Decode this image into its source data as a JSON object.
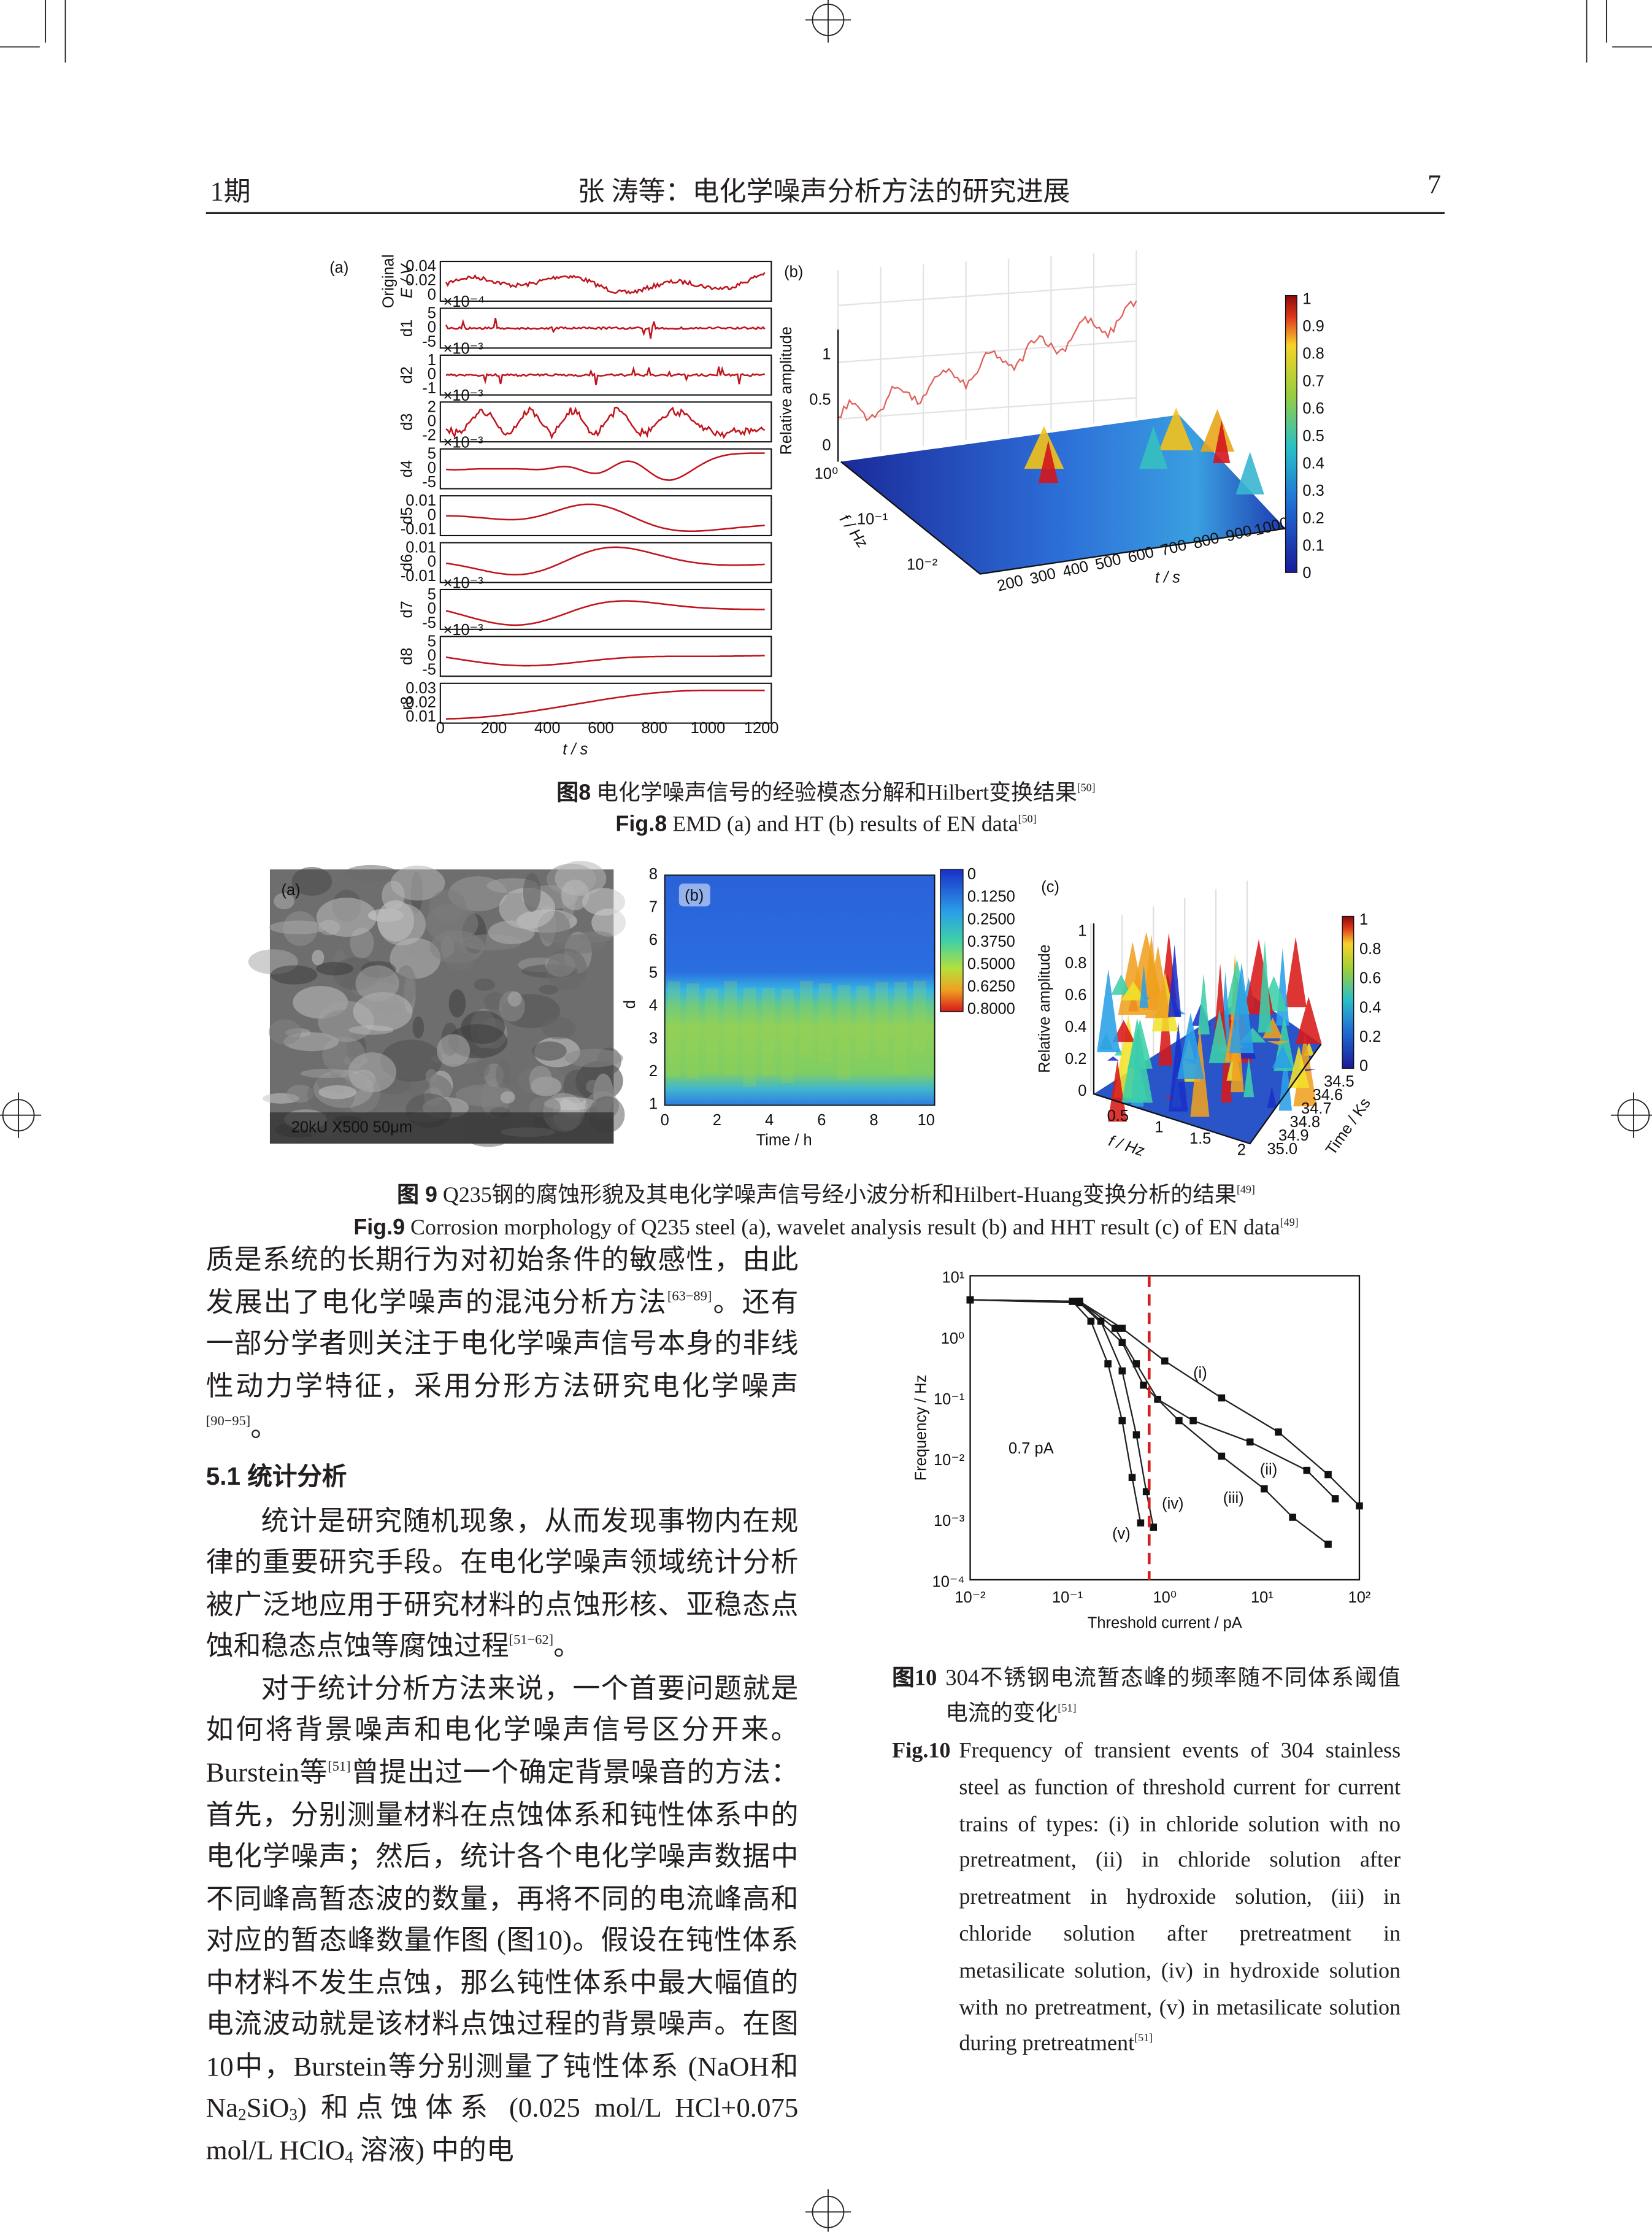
{
  "header": {
    "issue": "1期",
    "running_title": "张 涛等：电化学噪声分析方法的研究进展",
    "page": "7"
  },
  "figure8": {
    "panel_a": {
      "label": "(a)",
      "rows": [
        {
          "name": [
            "Original",
            "E / V"
          ],
          "ticks": [
            "0.04",
            "0.02",
            "0"
          ]
        },
        {
          "name": [
            "d1"
          ],
          "scale": "×10⁻⁴",
          "ticks": [
            "5",
            "0",
            "-5"
          ]
        },
        {
          "name": [
            "d2"
          ],
          "scale": "×10⁻³",
          "ticks": [
            "1",
            "0",
            "-1"
          ]
        },
        {
          "name": [
            "d3"
          ],
          "scale": "×10⁻³",
          "ticks": [
            "2",
            "0",
            "-2"
          ]
        },
        {
          "name": [
            "d4"
          ],
          "scale": "×10⁻³",
          "ticks": [
            "5",
            "0",
            "-5"
          ]
        },
        {
          "name": [
            "d5"
          ],
          "ticks": [
            "0.01",
            "0",
            "-0.01"
          ]
        },
        {
          "name": [
            "d6"
          ],
          "ticks": [
            "0.01",
            "0",
            "-0.01"
          ]
        },
        {
          "name": [
            "d7"
          ],
          "scale": "×10⁻³",
          "ticks": [
            "5",
            "0",
            "-5"
          ]
        },
        {
          "name": [
            "d8"
          ],
          "scale": "×10⁻³",
          "ticks": [
            "5",
            "0",
            "-5"
          ]
        },
        {
          "name": [
            "r8"
          ],
          "ticks": [
            "0.03",
            "0.02",
            "0.01"
          ]
        }
      ],
      "xticks": [
        "0",
        "200",
        "400",
        "600",
        "800",
        "1000",
        "1200"
      ],
      "xlabel": "t / s"
    },
    "panel_b": {
      "label": "(b)",
      "zlabel": "Relative amplitude",
      "zticks": [
        "1",
        "0.5",
        "0"
      ],
      "fticks": [
        "10⁰",
        "10⁻¹",
        "10⁻²"
      ],
      "flabel": "f / Hz",
      "tticks": [
        "200",
        "300",
        "400",
        "500",
        "600",
        "700",
        "800",
        "900",
        "1000"
      ],
      "tlabel": "t / s",
      "colorbar": [
        "1",
        "0.9",
        "0.8",
        "0.7",
        "0.6",
        "0.5",
        "0.4",
        "0.3",
        "0.2",
        "0.1",
        "0"
      ]
    },
    "caption_cn": {
      "label": "图8",
      "text": " 电化学噪声信号的经验模态分解和Hilbert变换结果",
      "ref": "[50]"
    },
    "caption_en": {
      "label": "Fig.8",
      "text": " EMD (a) and HT (b) results of EN data",
      "ref": "[50]"
    }
  },
  "figure9": {
    "panel_a": {
      "label": "(a)",
      "scale_text": "20kU   X500   50μm"
    },
    "panel_b": {
      "label": "(b)",
      "yticks": [
        "8",
        "7",
        "6",
        "5",
        "4",
        "3",
        "2",
        "1"
      ],
      "ylabel": "d",
      "xticks": [
        "0",
        "2",
        "4",
        "6",
        "8",
        "10"
      ],
      "xlabel": "Time / h",
      "colorbar": [
        "0",
        "0.1250",
        "0.2500",
        "0.3750",
        "0.5000",
        "0.6250",
        "0.8000"
      ]
    },
    "panel_c": {
      "label": "(c)",
      "zlabel": "Relative amplitude",
      "zticks": [
        "1",
        "0.8",
        "0.6",
        "0.4",
        "0.2",
        "0"
      ],
      "fticks": [
        "0.5",
        "1",
        "1.5",
        "2"
      ],
      "flabel": "f / Hz",
      "tticks": [
        "34.5",
        "34.6",
        "34.7",
        "34.8",
        "34.9",
        "35.0"
      ],
      "tlabel": "Time / Ks",
      "colorbar": [
        "1",
        "0.8",
        "0.6",
        "0.4",
        "0.2",
        "0"
      ]
    },
    "caption_cn": {
      "label": "图 9",
      "text": " Q235钢的腐蚀形貌及其电化学噪声信号经小波分析和Hilbert-Huang变换分析的结果",
      "ref": "[49]"
    },
    "caption_en": {
      "label": "Fig.9",
      "text": " Corrosion morphology of Q235 steel (a), wavelet analysis result (b) and HHT result (c) of EN data",
      "ref": "[49]"
    }
  },
  "figure10": {
    "ylabel": "Frequency / Hz",
    "yticks": [
      "10¹",
      "10⁰",
      "10⁻¹",
      "10⁻²",
      "10⁻³",
      "10⁻⁴"
    ],
    "xlabel": "Threshold current / pA",
    "xticks": [
      "10⁻²",
      "10⁻¹",
      "10⁰",
      "10¹",
      "10²"
    ],
    "annotations": [
      "(i)",
      "(ii)",
      "(iii)",
      "(iv)",
      "(v)",
      "0.7 pA"
    ],
    "caption_cn": {
      "label": "图10",
      "text": "304不锈钢电流暂态峰的频率随不同体系阈值电流的变化",
      "ref": "[51]"
    },
    "caption_en": {
      "label": "Fig.10",
      "text": "Frequency of transient events of 304 stainless steel as function of threshold current for current trains of types: (i) in chloride solution with no pretreatment, (ii) in chloride solution after pretreatment in hydroxide solution, (iii) in chloride solution after pretreatment in metasilicate solution, (iv) in hydroxide solution with no pretreatment, (v) in metasilicate solution during pretreatment",
      "ref": "[51]"
    }
  },
  "body": {
    "paragraphs": [
      [
        {
          "t": "质是系统的长期行为对初始条件的敏感性，由此发展出了电化学噪声的混沌分析方法"
        },
        {
          "sup": "[63−89]"
        },
        {
          "t": "。还有一部分学者则关注于电化学噪声信号本身的非线性动力学特征，采用分形方法研究电化学噪声"
        },
        {
          "sup": "[90−95]"
        },
        {
          "t": "。"
        }
      ],
      [
        {
          "t": "统计是研究随机现象，从而发现事物内在规律的重要研究手段。在电化学噪声领域统计分析被广泛地应用于研究材料的点蚀形核、亚稳态点蚀和稳态点蚀等腐蚀过程"
        },
        {
          "sup": "[51−62]"
        },
        {
          "t": "。"
        }
      ],
      [
        {
          "t": "对于统计分析方法来说，一个首要问题就是如何将背景噪声和电化学噪声信号区分开来。Burstein等"
        },
        {
          "sup": "[51]"
        },
        {
          "t": "曾提出过一个确定背景噪音的方法：首先，分别测量材料在点蚀体系和钝性体系中的电化学噪声；然后，统计各个电化学噪声数据中不同峰高暂态波的数量，再将不同的电流峰高和对应的暂态峰数量作图 (图10)。假设在钝性体系中材料不发生点蚀，那么钝性体系中最大幅值的电流波动就是该材料点蚀过程的背景噪声。在图10中，Burstein等分别测量了钝性体系 (NaOH和Na"
        },
        {
          "sub": "2"
        },
        {
          "t": "SiO"
        },
        {
          "sub": "3"
        },
        {
          "t": ") 和点蚀体系 (0.025 mol/L HCl+0.075 mol/L HClO"
        },
        {
          "sub": "4"
        },
        {
          "t": " 溶液) 中的电"
        }
      ]
    ],
    "heading": "5.1 统计分析"
  }
}
